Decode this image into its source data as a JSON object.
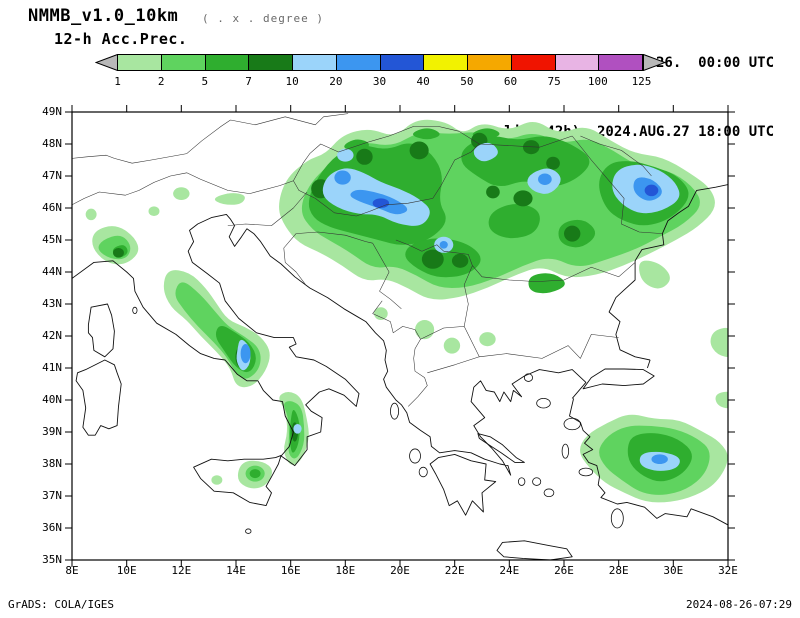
{
  "header": {
    "model": "NMMB_v1.0_10km",
    "grid_note": "( . x . degree )",
    "product": "12-h Acc.Prec.",
    "init_label": "initialisation: 2024.08.26.  00:00 UTC",
    "valid_label": "valid(+42h): 2024.AUG.27 18:00 UTC"
  },
  "colorbar": {
    "labels": [
      "1",
      "2",
      "5",
      "7",
      "10",
      "20",
      "30",
      "40",
      "50",
      "60",
      "75",
      "100",
      "125"
    ],
    "segment_colors": [
      "#a8e6a0",
      "#5fd35f",
      "#2fae2f",
      "#187a18",
      "#9bd4fa",
      "#3c96f0",
      "#2356d6",
      "#f2f200",
      "#f5a800",
      "#f01400",
      "#e8b4e4",
      "#b050c0"
    ],
    "arrow_color": "#b8b8b8"
  },
  "axes": {
    "lat_labels": [
      "49N",
      "48N",
      "47N",
      "46N",
      "45N",
      "44N",
      "43N",
      "42N",
      "41N",
      "40N",
      "39N",
      "38N",
      "37N",
      "36N",
      "35N"
    ],
    "lon_labels": [
      "8E",
      "10E",
      "12E",
      "14E",
      "16E",
      "18E",
      "20E",
      "22E",
      "24E",
      "26E",
      "28E",
      "30E",
      "32E"
    ]
  },
  "footer": {
    "left": "GrADS: COLA/IGES",
    "right": "2024-08-26-07:29"
  },
  "chart_data": {
    "type": "heatmap",
    "subtype": "filled-contour precipitation map",
    "variable": "12-h accumulated precipitation (mm)",
    "levels": [
      1,
      2,
      5,
      7,
      10,
      20,
      30,
      40,
      50,
      60,
      75,
      100,
      125
    ],
    "lon_range": [
      8,
      32
    ],
    "lat_range": [
      35,
      49
    ],
    "grid": "lat ticks every 1 deg, lon ticks every 2 deg, no gridlines inside frame",
    "main_precip_regions": [
      {
        "area": "Pannonian basin / Carpathians / Romania / N Balkans",
        "lon": [
          15.5,
          31.5
        ],
        "lat": [
          43.2,
          48.8
        ],
        "max_level_mm": "20-30"
      },
      {
        "area": "Hungary-Croatia-Serbia core",
        "lon": [
          17,
          21.2
        ],
        "lat": [
          45.4,
          47.2
        ],
        "max_level_mm": "20-30"
      },
      {
        "area": "Moldova / E Romania core",
        "lon": [
          27.7,
          30.3
        ],
        "lat": [
          45.8,
          47.4
        ],
        "max_level_mm": "20-30"
      },
      {
        "area": "Transylvania patch",
        "lon": [
          24.6,
          26.0
        ],
        "lat": [
          46.4,
          47.3
        ],
        "max_level_mm": "10-20"
      },
      {
        "area": "Central Italy Apennines",
        "lon": [
          11.3,
          15.3
        ],
        "lat": [
          40.3,
          44.1
        ],
        "max_level_mm": "10-20"
      },
      {
        "area": "NW Italy (Liguria/Emilia)",
        "lon": [
          8.7,
          10.5
        ],
        "lat": [
          44.2,
          45.5
        ],
        "max_level_mm": "5-7"
      },
      {
        "area": "Calabria strip",
        "lon": [
          15.5,
          16.7
        ],
        "lat": [
          37.9,
          40.3
        ],
        "max_level_mm": "10"
      },
      {
        "area": "E Sicily spots",
        "lon": [
          13.1,
          15.4
        ],
        "lat": [
          37.2,
          38.1
        ],
        "max_level_mm": "5"
      },
      {
        "area": "SW Turkey",
        "lon": [
          26.5,
          32.0
        ],
        "lat": [
          36.8,
          39.6
        ],
        "max_level_mm": "10-20"
      }
    ]
  }
}
